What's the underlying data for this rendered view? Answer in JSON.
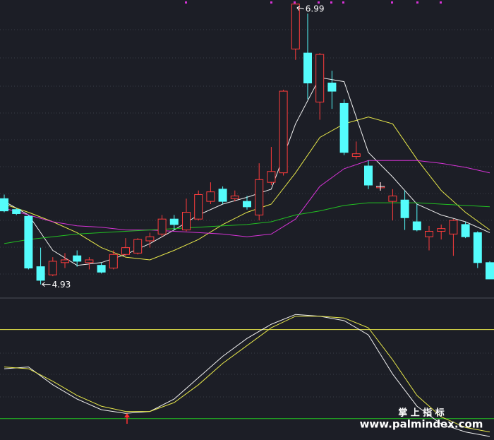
{
  "chart_data": [
    {
      "type": "candlestick",
      "ylim": [
        4.84,
        7.02
      ],
      "up_color": "#ff3c3c",
      "down_color": "#54fcfc",
      "open": [
        5.56,
        5.48,
        5.43,
        5.06,
        5.0,
        5.09,
        5.14,
        5.09,
        5.07,
        5.05,
        5.15,
        5.16,
        5.25,
        5.3,
        5.41,
        5.33,
        5.41,
        5.54,
        5.63,
        5.56,
        5.54,
        5.44,
        5.68,
        5.75,
        6.66,
        6.63,
        6.27,
        6.41,
        6.26,
        5.87,
        5.8,
        5.64,
        5.54,
        5.55,
        5.39,
        5.28,
        5.32,
        5.3,
        5.37,
        5.31,
        5.09
      ],
      "close": [
        5.47,
        5.45,
        5.05,
        4.96,
        5.1,
        5.11,
        5.1,
        5.11,
        5.02,
        5.15,
        5.2,
        5.26,
        5.28,
        5.41,
        5.37,
        5.46,
        5.59,
        5.61,
        5.54,
        5.58,
        5.5,
        5.7,
        5.76,
        6.35,
        6.99,
        6.41,
        6.62,
        6.35,
        5.9,
        5.89,
        5.66,
        5.65,
        5.58,
        5.42,
        5.33,
        5.32,
        5.34,
        5.4,
        5.28,
        5.09,
        4.97
      ],
      "high": [
        5.59,
        5.49,
        5.44,
        5.2,
        5.13,
        5.16,
        5.18,
        5.13,
        5.09,
        5.18,
        5.27,
        5.27,
        5.31,
        5.44,
        5.44,
        5.56,
        5.62,
        5.68,
        5.65,
        5.62,
        5.58,
        5.82,
        5.94,
        6.36,
        6.99,
        6.92,
        6.63,
        6.5,
        6.29,
        5.98,
        5.84,
        5.68,
        5.63,
        5.62,
        5.52,
        5.36,
        5.37,
        5.41,
        5.39,
        5.32,
        5.1
      ],
      "low": [
        5.46,
        5.44,
        5.04,
        4.93,
        4.99,
        5.05,
        5.06,
        5.04,
        5.01,
        5.04,
        5.14,
        5.15,
        5.2,
        5.28,
        5.33,
        5.32,
        5.4,
        5.52,
        5.52,
        5.54,
        5.48,
        5.4,
        5.66,
        5.73,
        6.58,
        6.29,
        6.14,
        6.22,
        5.88,
        5.85,
        5.63,
        5.62,
        5.4,
        5.33,
        5.32,
        5.18,
        5.26,
        5.14,
        5.27,
        5.05,
        4.97
      ],
      "line_x": [
        0,
        2,
        4,
        6,
        8,
        10,
        12,
        14,
        16,
        18,
        20,
        22,
        24,
        26,
        28,
        30,
        32,
        34,
        36,
        38,
        40
      ],
      "lines": [
        {
          "color": "#f0f0f0",
          "values": [
            5.54,
            5.44,
            5.18,
            5.07,
            5.09,
            5.15,
            5.23,
            5.33,
            5.44,
            5.52,
            5.57,
            5.63,
            6.11,
            6.45,
            6.42,
            5.9,
            5.72,
            5.52,
            5.44,
            5.39,
            5.31
          ]
        },
        {
          "color": "#e8e84a",
          "values": [
            5.52,
            5.46,
            5.39,
            5.31,
            5.2,
            5.13,
            5.11,
            5.18,
            5.26,
            5.37,
            5.46,
            5.52,
            5.75,
            6.01,
            6.11,
            6.16,
            6.11,
            5.85,
            5.62,
            5.46,
            5.33
          ]
        },
        {
          "color": "#d633d6",
          "values": [
            5.49,
            5.44,
            5.39,
            5.36,
            5.35,
            5.33,
            5.33,
            5.32,
            5.31,
            5.3,
            5.28,
            5.3,
            5.41,
            5.65,
            5.78,
            5.84,
            5.84,
            5.84,
            5.82,
            5.79,
            5.75
          ]
        },
        {
          "color": "#22c022",
          "values": [
            5.23,
            5.26,
            5.28,
            5.3,
            5.31,
            5.32,
            5.33,
            5.34,
            5.35,
            5.36,
            5.37,
            5.39,
            5.44,
            5.47,
            5.51,
            5.53,
            5.53,
            5.53,
            5.52,
            5.51,
            5.5
          ]
        }
      ],
      "high_label": 6.99,
      "low_label": 4.93
    },
    {
      "type": "line",
      "ylim": [
        -24,
        133
      ],
      "x": [
        0,
        2,
        4,
        6,
        8,
        10,
        12,
        14,
        16,
        18,
        20,
        22,
        24,
        26,
        28,
        30,
        32,
        34,
        36,
        38,
        40
      ],
      "series": [
        {
          "color": "#f0f0f0",
          "values": [
            56,
            58,
            38,
            22,
            10,
            6,
            8,
            22,
            46,
            70,
            90,
            106,
            117,
            115,
            110,
            94,
            50,
            14,
            -6,
            -15,
            -20
          ]
        },
        {
          "color": "#e8e84a",
          "values": [
            58,
            56,
            42,
            26,
            14,
            8,
            8,
            18,
            38,
            62,
            82,
            102,
            115,
            115,
            113,
            102,
            66,
            26,
            2,
            -10,
            -15
          ]
        }
      ],
      "reference_lines": [
        {
          "value": 100,
          "color": "#e8e84a"
        },
        {
          "value": 0,
          "color": "#22c022"
        }
      ]
    }
  ],
  "watermark": {
    "title": "掌 上 指 标",
    "url": "www.palmindex.com"
  }
}
